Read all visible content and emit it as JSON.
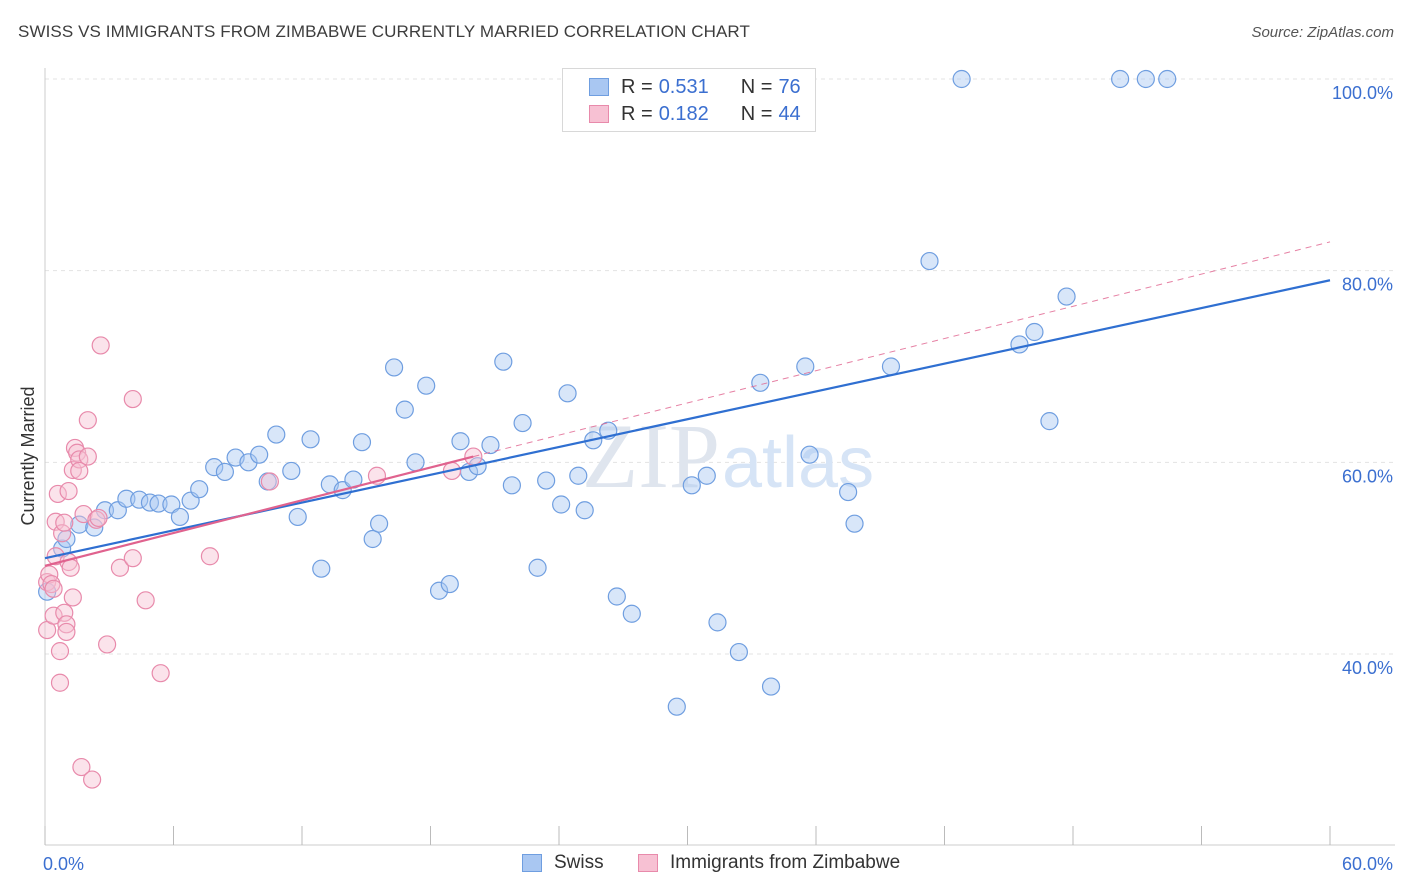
{
  "title": "SWISS VS IMMIGRANTS FROM ZIMBABWE CURRENTLY MARRIED CORRELATION CHART",
  "source": "Source: ZipAtlas.com",
  "watermark": {
    "zip": "ZIP",
    "atlas": "atlas"
  },
  "legend": {
    "rows": [
      {
        "r_label": "R =",
        "r_value": "0.531",
        "n_label": "N =",
        "n_value": "76",
        "color": "#a9c7f2",
        "stroke": "#6f9ee0"
      },
      {
        "r_label": "R =",
        "r_value": "0.182",
        "n_label": "N =",
        "n_value": "44",
        "color": "#f7c1d3",
        "stroke": "#e88aab"
      }
    ]
  },
  "bottom_legend": [
    {
      "label": "Swiss",
      "color": "#a9c7f2",
      "stroke": "#6f9ee0"
    },
    {
      "label": "Immigrants from Zimbabwe",
      "color": "#f7c1d3",
      "stroke": "#e88aab"
    }
  ],
  "chart_data": {
    "type": "scatter",
    "title": "SWISS VS IMMIGRANTS FROM ZIMBABWE CURRENTLY MARRIED CORRELATION CHART",
    "xlabel": "",
    "ylabel": "Currently Married",
    "xlim": [
      0,
      60
    ],
    "ylim": [
      20,
      102
    ],
    "x_tick_labels": [
      {
        "value": 0,
        "label": "0.0%"
      },
      {
        "value": 60,
        "label": "60.0%"
      }
    ],
    "y_tick_labels": [
      {
        "value": 40,
        "label": "40.0%"
      },
      {
        "value": 60,
        "label": "60.0%"
      },
      {
        "value": 80,
        "label": "80.0%"
      },
      {
        "value": 100,
        "label": "100.0%"
      }
    ],
    "grid": true,
    "colors": {
      "swiss": "#6f9ee0",
      "zimbabwe": "#e88aab",
      "swiss_line": "#2f6fd1",
      "zim_line": "#e0628e",
      "tick_label": "#3b6fd0"
    },
    "series": [
      {
        "name": "Swiss",
        "trend": {
          "x": [
            0,
            60
          ],
          "y": [
            50.0,
            79.0
          ]
        },
        "points": [
          [
            0.1,
            46.5
          ],
          [
            0.8,
            51.0
          ],
          [
            1.0,
            52.0
          ],
          [
            1.6,
            53.5
          ],
          [
            2.3,
            53.2
          ],
          [
            2.8,
            55.0
          ],
          [
            3.4,
            55.0
          ],
          [
            3.8,
            56.2
          ],
          [
            4.4,
            56.1
          ],
          [
            4.9,
            55.8
          ],
          [
            5.3,
            55.7
          ],
          [
            5.9,
            55.6
          ],
          [
            6.3,
            54.3
          ],
          [
            6.8,
            56.0
          ],
          [
            7.2,
            57.2
          ],
          [
            7.9,
            59.5
          ],
          [
            8.4,
            59.0
          ],
          [
            8.9,
            60.5
          ],
          [
            9.5,
            60.0
          ],
          [
            10.0,
            60.8
          ],
          [
            10.4,
            58.0
          ],
          [
            10.8,
            62.9
          ],
          [
            11.5,
            59.1
          ],
          [
            11.8,
            54.3
          ],
          [
            12.4,
            62.4
          ],
          [
            12.9,
            48.9
          ],
          [
            13.3,
            57.7
          ],
          [
            13.9,
            57.1
          ],
          [
            14.4,
            58.2
          ],
          [
            14.8,
            62.1
          ],
          [
            15.3,
            52.0
          ],
          [
            15.6,
            53.6
          ],
          [
            16.3,
            69.9
          ],
          [
            16.8,
            65.5
          ],
          [
            17.3,
            60.0
          ],
          [
            17.8,
            68.0
          ],
          [
            18.4,
            46.6
          ],
          [
            18.9,
            47.3
          ],
          [
            19.4,
            62.2
          ],
          [
            19.8,
            59.0
          ],
          [
            20.2,
            59.6
          ],
          [
            20.8,
            61.8
          ],
          [
            21.4,
            70.5
          ],
          [
            21.8,
            57.6
          ],
          [
            22.3,
            64.1
          ],
          [
            23.0,
            49.0
          ],
          [
            23.4,
            58.1
          ],
          [
            24.1,
            55.6
          ],
          [
            24.4,
            67.2
          ],
          [
            24.9,
            58.6
          ],
          [
            25.2,
            55.0
          ],
          [
            25.6,
            62.3
          ],
          [
            26.3,
            63.3
          ],
          [
            26.7,
            46.0
          ],
          [
            27.4,
            44.2
          ],
          [
            29.5,
            34.5
          ],
          [
            30.2,
            57.6
          ],
          [
            30.9,
            58.6
          ],
          [
            31.4,
            43.3
          ],
          [
            32.4,
            40.2
          ],
          [
            33.4,
            68.3
          ],
          [
            33.9,
            36.6
          ],
          [
            35.5,
            70.0
          ],
          [
            35.7,
            60.8
          ],
          [
            37.5,
            56.9
          ],
          [
            37.8,
            53.6
          ],
          [
            39.5,
            70.0
          ],
          [
            41.3,
            81.0
          ],
          [
            42.8,
            100.0
          ],
          [
            45.5,
            72.3
          ],
          [
            46.2,
            73.6
          ],
          [
            46.9,
            64.3
          ],
          [
            47.7,
            77.3
          ],
          [
            50.2,
            100.0
          ],
          [
            51.4,
            100.0
          ],
          [
            52.4,
            100.0
          ]
        ]
      },
      {
        "name": "Immigrants from Zimbabwe",
        "trend": {
          "x": [
            0,
            20
          ],
          "y": [
            49.2,
            60.6
          ]
        },
        "trend_dashed": {
          "x": [
            20,
            60
          ],
          "y": [
            60.6,
            83.0
          ]
        },
        "points": [
          [
            0.1,
            47.5
          ],
          [
            0.1,
            42.5
          ],
          [
            0.2,
            48.3
          ],
          [
            0.3,
            47.3
          ],
          [
            0.4,
            46.8
          ],
          [
            0.4,
            44.0
          ],
          [
            0.5,
            50.2
          ],
          [
            0.5,
            53.8
          ],
          [
            0.6,
            56.7
          ],
          [
            0.7,
            37.0
          ],
          [
            0.7,
            40.3
          ],
          [
            0.8,
            52.6
          ],
          [
            0.9,
            53.7
          ],
          [
            0.9,
            44.3
          ],
          [
            1.0,
            43.1
          ],
          [
            1.0,
            42.3
          ],
          [
            1.1,
            57.0
          ],
          [
            1.1,
            49.6
          ],
          [
            1.2,
            49.0
          ],
          [
            1.3,
            59.2
          ],
          [
            1.3,
            45.9
          ],
          [
            1.4,
            61.5
          ],
          [
            1.5,
            61.0
          ],
          [
            1.6,
            60.3
          ],
          [
            1.6,
            59.1
          ],
          [
            1.7,
            28.2
          ],
          [
            1.8,
            54.6
          ],
          [
            2.0,
            64.4
          ],
          [
            2.0,
            60.6
          ],
          [
            2.2,
            26.9
          ],
          [
            2.4,
            54.0
          ],
          [
            2.5,
            54.2
          ],
          [
            2.6,
            72.2
          ],
          [
            2.9,
            41.0
          ],
          [
            3.5,
            49.0
          ],
          [
            4.1,
            50.0
          ],
          [
            4.1,
            66.6
          ],
          [
            4.7,
            45.6
          ],
          [
            5.4,
            38.0
          ],
          [
            7.7,
            50.2
          ],
          [
            10.5,
            58.0
          ],
          [
            15.5,
            58.6
          ],
          [
            19.0,
            59.1
          ],
          [
            20.0,
            60.6
          ]
        ]
      }
    ]
  }
}
